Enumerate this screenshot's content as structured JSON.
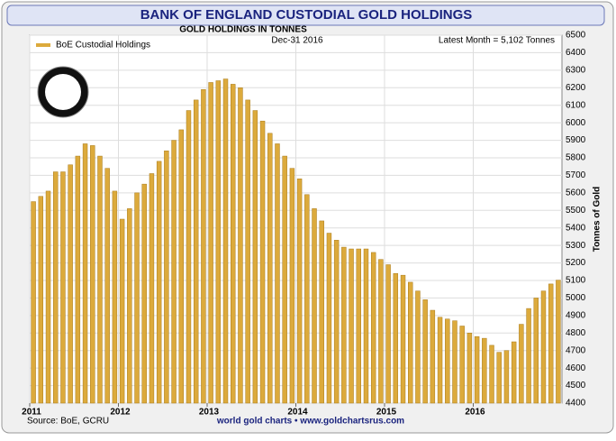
{
  "chart_data": {
    "type": "bar",
    "title": "BANK OF ENGLAND CUSTODIAL GOLD HOLDINGS",
    "subtitle": "GOLD HOLDINGS IN TONNES",
    "date_label": "Dec-31  2016",
    "latest_label": "Latest Month = 5,102 Tonnes",
    "y_axis_label": "Tonnes of Gold",
    "source": "Source: BoE, GCRU",
    "footer": "world gold charts • www.goldchartsrus.com",
    "categories": [
      "2011",
      null,
      null,
      null,
      null,
      null,
      null,
      null,
      null,
      null,
      null,
      null,
      "2012",
      null,
      null,
      null,
      null,
      null,
      null,
      null,
      null,
      null,
      null,
      null,
      "2013",
      null,
      null,
      null,
      null,
      null,
      null,
      null,
      null,
      null,
      null,
      null,
      "2014",
      null,
      null,
      null,
      null,
      null,
      null,
      null,
      null,
      null,
      null,
      null,
      "2015",
      null,
      null,
      null,
      null,
      null,
      null,
      null,
      null,
      null,
      null,
      null,
      "2016",
      null,
      null,
      null,
      null,
      null,
      null,
      null,
      null,
      null,
      null,
      null
    ],
    "series": [
      {
        "name": "BoE Custodial Holdings",
        "color": "#dcaa3c",
        "values": [
          5550,
          5580,
          5610,
          5720,
          5720,
          5760,
          5810,
          5880,
          5870,
          5810,
          5740,
          5610,
          5450,
          5510,
          5600,
          5650,
          5710,
          5780,
          5840,
          5900,
          5960,
          6070,
          6130,
          6190,
          6230,
          6240,
          6250,
          6220,
          6200,
          6130,
          6070,
          6010,
          5940,
          5880,
          5810,
          5740,
          5680,
          5590,
          5510,
          5440,
          5370,
          5330,
          5290,
          5280,
          5280,
          5280,
          5260,
          5220,
          5190,
          5140,
          5130,
          5090,
          5040,
          4990,
          4930,
          4890,
          4880,
          4870,
          4840,
          4800,
          4780,
          4770,
          4730,
          4690,
          4700,
          4750,
          4850,
          4940,
          5000,
          5040,
          5080,
          5102
        ]
      }
    ],
    "ylim": [
      4400,
      6500
    ],
    "yticks": [
      4400,
      4500,
      4600,
      4700,
      4800,
      4900,
      5000,
      5100,
      5200,
      5300,
      5400,
      5500,
      5600,
      5700,
      5800,
      5900,
      6000,
      6100,
      6200,
      6300,
      6400,
      6500
    ],
    "grid": true,
    "legend": "top-left"
  }
}
